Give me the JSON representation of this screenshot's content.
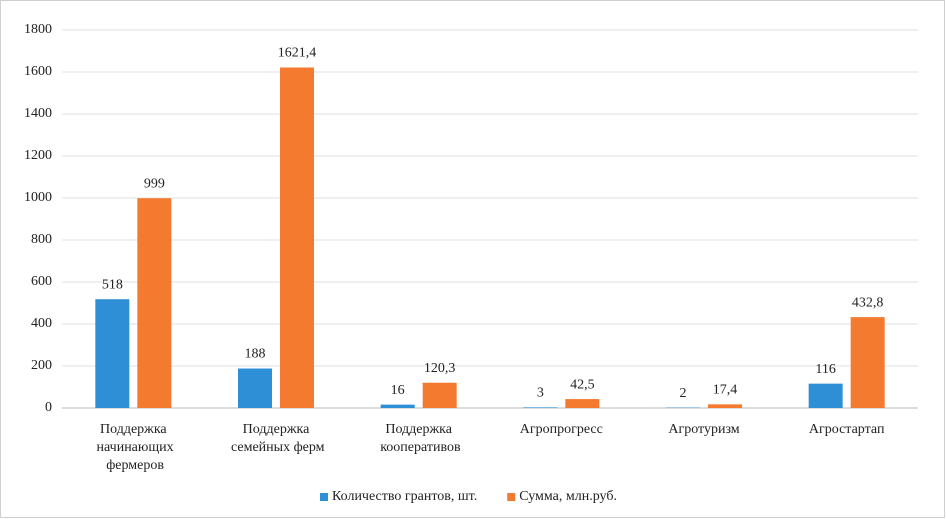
{
  "chart_data": {
    "type": "bar",
    "categories": [
      "Поддержка начинающих фермеров",
      "Поддержка семейных ферм",
      "Поддержка кооперативов",
      "Агропрогресс",
      "Агротуризм",
      "Агростартап"
    ],
    "series": [
      {
        "name": "Количество грантов, шт.",
        "color": "#2e8ed6",
        "values": [
          518,
          188,
          16,
          3,
          2,
          116
        ],
        "value_labels": [
          "518",
          "188",
          "16",
          "3",
          "2",
          "116"
        ]
      },
      {
        "name": "Сумма, млн.руб.",
        "color": "#f47a30",
        "values": [
          999,
          1621.4,
          120.3,
          42.5,
          17.4,
          432.8
        ],
        "value_labels": [
          "999",
          "1621,4",
          "120,3",
          "42,5",
          "17,4",
          "432,8"
        ]
      }
    ],
    "ylim": [
      0,
      1800
    ],
    "yticks": [
      0,
      200,
      400,
      600,
      800,
      1000,
      1200,
      1400,
      1600,
      1800
    ],
    "grid": true,
    "legend": "bottom"
  }
}
